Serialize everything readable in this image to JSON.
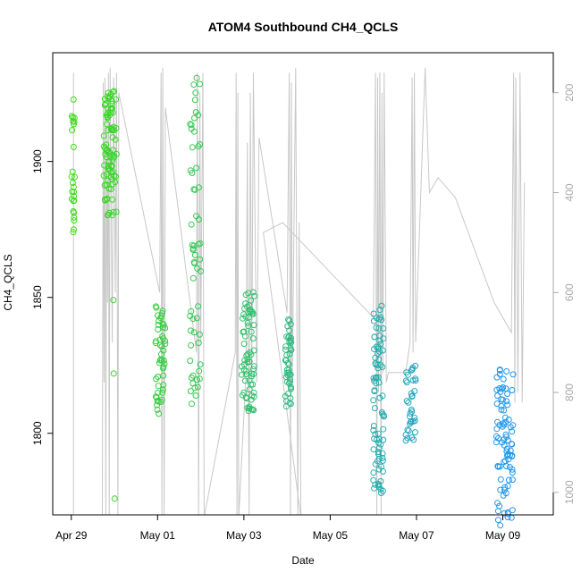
{
  "chart_data": {
    "type": "scatter",
    "title": "ATOM4 Southbound CH4_QCLS",
    "xlabel": "Date",
    "ylabel": "CH4_QCLS",
    "x_ticks": [
      "Apr 29",
      "May 01",
      "May 03",
      "May 05",
      "May 07",
      "May 09"
    ],
    "x_tick_days": [
      0,
      2,
      4,
      6,
      8,
      10
    ],
    "y_ticks": [
      1800,
      1850,
      1900
    ],
    "right_ticks": [
      200,
      400,
      600,
      800,
      1000
    ],
    "xlim_days": [
      -0.43,
      11.17
    ],
    "ylim": [
      1770,
      1940
    ],
    "right_lim": [
      1045,
      120
    ],
    "colors": {
      "pressure_line": "#c8c8c8",
      "right_axis": "#aaaaaa",
      "gradient_start": "#3cdc14",
      "gradient_end": "#1e96f0"
    },
    "pressure_trace": [
      [
        0.05,
        1050
      ],
      [
        0.05,
        230
      ],
      [
        0.05,
        760
      ],
      [
        0.05,
        160
      ],
      [
        0.05,
        1050
      ],
      [
        0.72,
        1050
      ],
      [
        0.74,
        180
      ],
      [
        0.76,
        780
      ],
      [
        0.78,
        170
      ],
      [
        0.8,
        1050
      ],
      [
        0.82,
        230
      ],
      [
        0.84,
        620
      ],
      [
        0.86,
        160
      ],
      [
        0.88,
        1050
      ],
      [
        0.9,
        150
      ],
      [
        0.95,
        700
      ],
      [
        0.98,
        170
      ],
      [
        1.02,
        600
      ],
      [
        1.05,
        160
      ],
      [
        1.08,
        1050
      ],
      [
        1.1,
        200
      ],
      [
        2.05,
        600
      ],
      [
        2.08,
        160
      ],
      [
        2.1,
        1050
      ],
      [
        2.12,
        150
      ],
      [
        2.15,
        1050
      ],
      [
        2.18,
        230
      ],
      [
        2.9,
        720
      ],
      [
        2.92,
        160
      ],
      [
        2.95,
        1050
      ],
      [
        2.98,
        200
      ],
      [
        3.0,
        700
      ],
      [
        3.05,
        160
      ],
      [
        3.08,
        1050
      ],
      [
        3.8,
        720
      ],
      [
        3.82,
        160
      ],
      [
        3.84,
        1050
      ],
      [
        3.86,
        200
      ],
      [
        3.88,
        1050
      ],
      [
        4.05,
        760
      ],
      [
        4.08,
        300
      ],
      [
        4.12,
        1050
      ],
      [
        4.15,
        200
      ],
      [
        4.18,
        780
      ],
      [
        4.22,
        160
      ],
      [
        4.3,
        780
      ],
      [
        4.35,
        290
      ],
      [
        5.0,
        640
      ],
      [
        5.05,
        160
      ],
      [
        5.08,
        1050
      ],
      [
        5.1,
        180
      ],
      [
        5.12,
        800
      ],
      [
        5.2,
        150
      ],
      [
        5.25,
        1050
      ],
      [
        5.28,
        460
      ],
      [
        5.32,
        1050
      ],
      [
        4.45,
        480
      ],
      [
        4.9,
        460
      ],
      [
        7.0,
        650
      ],
      [
        7.05,
        160
      ],
      [
        7.08,
        1050
      ],
      [
        7.1,
        170
      ],
      [
        7.12,
        800
      ],
      [
        7.15,
        160
      ],
      [
        7.18,
        1050
      ],
      [
        7.2,
        200
      ],
      [
        7.22,
        760
      ],
      [
        7.25,
        160
      ],
      [
        7.3,
        780
      ],
      [
        7.35,
        760
      ],
      [
        7.7,
        760
      ],
      [
        7.75,
        760
      ],
      [
        7.85,
        700
      ],
      [
        7.9,
        170
      ],
      [
        7.92,
        720
      ],
      [
        7.95,
        160
      ],
      [
        7.98,
        700
      ],
      [
        8.2,
        150
      ],
      [
        8.3,
        400
      ],
      [
        8.5,
        370
      ],
      [
        8.9,
        410
      ],
      [
        9.8,
        620
      ],
      [
        10.2,
        680
      ],
      [
        10.25,
        160
      ],
      [
        10.28,
        820
      ],
      [
        10.3,
        170
      ],
      [
        10.35,
        800
      ],
      [
        10.4,
        160
      ],
      [
        10.45,
        820
      ],
      [
        10.5,
        380
      ]
    ],
    "clusters": [
      {
        "days": [
          0.0,
          0.08
        ],
        "y": [
          1869,
          1923
        ],
        "n": 26
      },
      {
        "days": [
          0.75,
          1.05
        ],
        "y": [
          1880,
          1926
        ],
        "n": 90
      },
      {
        "days": [
          0.95,
          0.99
        ],
        "y": [
          1849,
          1849
        ],
        "n": 1
      },
      {
        "days": [
          0.96,
          1.0
        ],
        "y": [
          1822,
          1822
        ],
        "n": 1
      },
      {
        "days": [
          0.97,
          1.01
        ],
        "y": [
          1776,
          1776
        ],
        "n": 1
      },
      {
        "days": [
          1.95,
          2.18
        ],
        "y": [
          1807,
          1847
        ],
        "n": 50
      },
      {
        "days": [
          2.75,
          3.0
        ],
        "y": [
          1810,
          1933
        ],
        "n": 60
      },
      {
        "days": [
          3.95,
          4.25
        ],
        "y": [
          1808,
          1852
        ],
        "n": 70
      },
      {
        "days": [
          4.95,
          5.1
        ],
        "y": [
          1809,
          1843
        ],
        "n": 45
      },
      {
        "days": [
          7.0,
          7.25
        ],
        "y": [
          1778,
          1850
        ],
        "n": 85
      },
      {
        "days": [
          7.75,
          7.98
        ],
        "y": [
          1796,
          1826
        ],
        "n": 35
      },
      {
        "days": [
          9.85,
          10.25
        ],
        "y": [
          1766,
          1825
        ],
        "n": 85
      }
    ]
  }
}
